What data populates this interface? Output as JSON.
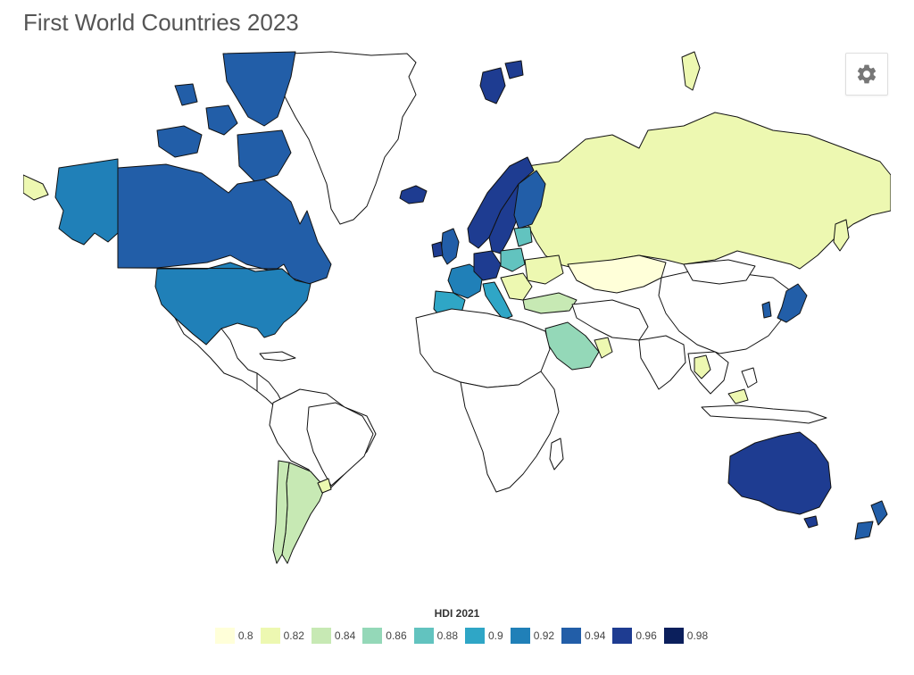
{
  "title": "First World Countries 2023",
  "settings_button": {
    "icon": "gear-icon"
  },
  "legend": {
    "title": "HDI 2021",
    "items": [
      {
        "label": "0.8",
        "color": "#ffffd9"
      },
      {
        "label": "0.82",
        "color": "#edf8b1"
      },
      {
        "label": "0.84",
        "color": "#c7e9b4"
      },
      {
        "label": "0.86",
        "color": "#94d8b8"
      },
      {
        "label": "0.88",
        "color": "#62c3bf"
      },
      {
        "label": "0.9",
        "color": "#2fa6c6"
      },
      {
        "label": "0.92",
        "color": "#2080b8"
      },
      {
        "label": "0.94",
        "color": "#225ea8"
      },
      {
        "label": "0.96",
        "color": "#1e3c91"
      },
      {
        "label": "0.98",
        "color": "#0b1f5c"
      }
    ]
  },
  "colors": {
    "no_data": "#ffffff",
    "hdi_080": "#ffffd9",
    "hdi_082": "#edf8b1",
    "hdi_084": "#c7e9b4",
    "hdi_086": "#94d8b8",
    "hdi_088": "#62c3bf",
    "hdi_090": "#2fa6c6",
    "hdi_092": "#2080b8",
    "hdi_094": "#225ea8",
    "hdi_096": "#1e3c91"
  }
}
